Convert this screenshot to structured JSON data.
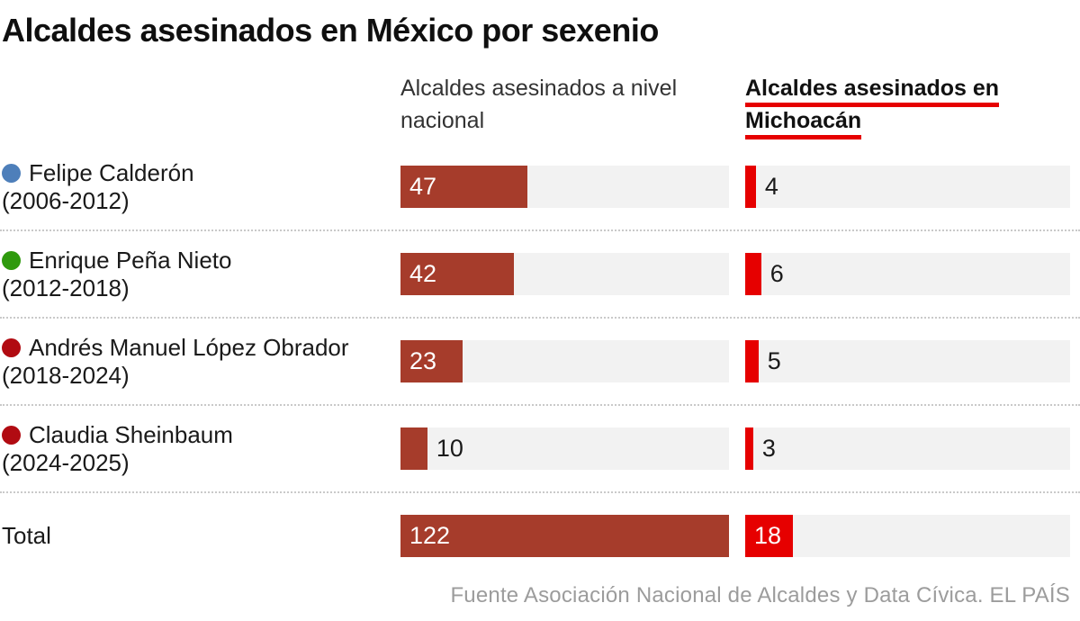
{
  "title": "Alcaldes asesinados en México por sexenio",
  "headers": {
    "national": "Alcaldes asesinados a nivel nacional",
    "michoacan": "Alcaldes asesinados en Michoacán"
  },
  "rows": [
    {
      "name": "Felipe Calderón",
      "period": "(2006-2012)",
      "dot_color": "#4e7fba"
    },
    {
      "name": "Enrique Peña Nieto",
      "period": "(2012-2018)",
      "dot_color": "#2f9a0e"
    },
    {
      "name": "Andrés Manuel López Obrador",
      "period": "(2018-2024)",
      "dot_color": "#b10b12"
    },
    {
      "name": "Claudia Sheinbaum",
      "period": "(2024-2025)",
      "dot_color": "#b10b12"
    }
  ],
  "total_label": "Total",
  "source": "Fuente Asociación Nacional de Alcaldes y Data Cívica. EL PAÍS",
  "colors": {
    "national_bar": "#a63c2b",
    "michoacan_bar": "#e60000",
    "track": "#f2f2f2",
    "header_underline": "#e60000"
  },
  "chart_data": {
    "type": "bar",
    "orientation": "horizontal",
    "title": "Alcaldes asesinados en México por sexenio",
    "categories": [
      "Felipe Calderón (2006-2012)",
      "Enrique Peña Nieto (2012-2018)",
      "Andrés Manuel López Obrador (2018-2024)",
      "Claudia Sheinbaum (2024-2025)",
      "Total"
    ],
    "series": [
      {
        "name": "Alcaldes asesinados a nivel nacional",
        "values": [
          47,
          42,
          23,
          10,
          122
        ]
      },
      {
        "name": "Alcaldes asesinados en Michoacán",
        "values": [
          4,
          6,
          5,
          3,
          18
        ]
      }
    ],
    "xlim": [
      0,
      122
    ],
    "grid": false,
    "legend_position": "column-headers",
    "source": "Fuente Asociación Nacional de Alcaldes y Data Cívica. EL PAÍS"
  }
}
